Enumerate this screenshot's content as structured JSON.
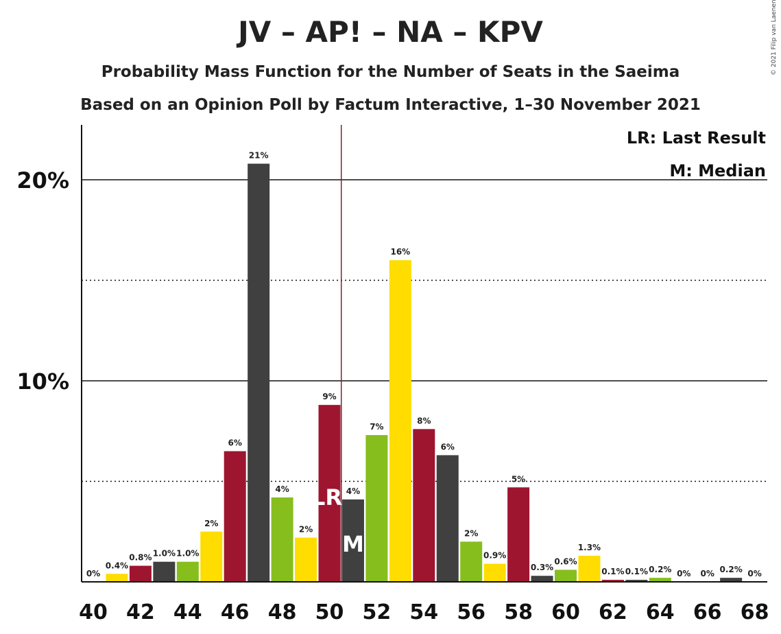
{
  "title": "JV – AP! – NA – KPV",
  "subtitle_1": "Probability Mass Function for the Number of Seats in the Saeima",
  "subtitle_2": "Based on an Opinion Poll by Factum Interactive, 1–30 November 2021",
  "copyright": "© 2021 Filip van Laenen",
  "legend": {
    "lr": "LR: Last Result",
    "m": "M: Median"
  },
  "markers": {
    "lr_label": "LR",
    "m_label": "M",
    "last_result_seat": 51,
    "median_seat": 51
  },
  "colors": {
    "red": "#9E1530",
    "dark": "#404040",
    "green": "#86BE1E",
    "yellow": "#FFDD00",
    "lr_line": "#7A2230"
  },
  "chart_data": {
    "type": "bar",
    "x": [
      40,
      41,
      42,
      43,
      44,
      45,
      46,
      47,
      48,
      49,
      50,
      51,
      52,
      53,
      54,
      55,
      56,
      57,
      58,
      59,
      60,
      61,
      62,
      63,
      64,
      65,
      66,
      67,
      68
    ],
    "values": [
      0,
      0.4,
      0.8,
      1.0,
      1.0,
      2.5,
      6.5,
      20.8,
      4.2,
      2.2,
      8.8,
      4.1,
      7.3,
      16.0,
      7.6,
      6.3,
      2.0,
      0.9,
      4.7,
      0.3,
      0.6,
      1.3,
      0.1,
      0.1,
      0.2,
      0,
      0,
      0.2,
      0
    ],
    "labels": [
      "0%",
      "0.4%",
      "0.8%",
      "1.0%",
      "1.0%",
      "2%",
      "6%",
      "21%",
      "4%",
      "2%",
      "9%",
      "4%",
      "7%",
      "16%",
      "8%",
      "6%",
      "2%",
      "0.9%",
      "5%",
      "0.3%",
      "0.6%",
      "1.3%",
      "0.1%",
      "0.1%",
      "0.2%",
      "0%",
      "0%",
      "0.2%",
      "0%"
    ],
    "color_keys": [
      "red",
      "yellow",
      "red",
      "dark",
      "green",
      "yellow",
      "red",
      "dark",
      "green",
      "yellow",
      "red",
      "dark",
      "green",
      "yellow",
      "red",
      "dark",
      "green",
      "yellow",
      "red",
      "dark",
      "green",
      "yellow",
      "red",
      "dark",
      "green",
      "yellow",
      "red",
      "dark",
      "green"
    ],
    "xticks": [
      40,
      42,
      44,
      46,
      48,
      50,
      52,
      54,
      56,
      58,
      60,
      62,
      64,
      66,
      68
    ],
    "yticks": [
      {
        "value": 10,
        "label": "10%"
      },
      {
        "value": 20,
        "label": "20%"
      }
    ],
    "ylim": [
      0,
      22.5
    ],
    "grid": "solid major lines at 10% and 20%, dotted minor lines at 5% and 15%"
  }
}
